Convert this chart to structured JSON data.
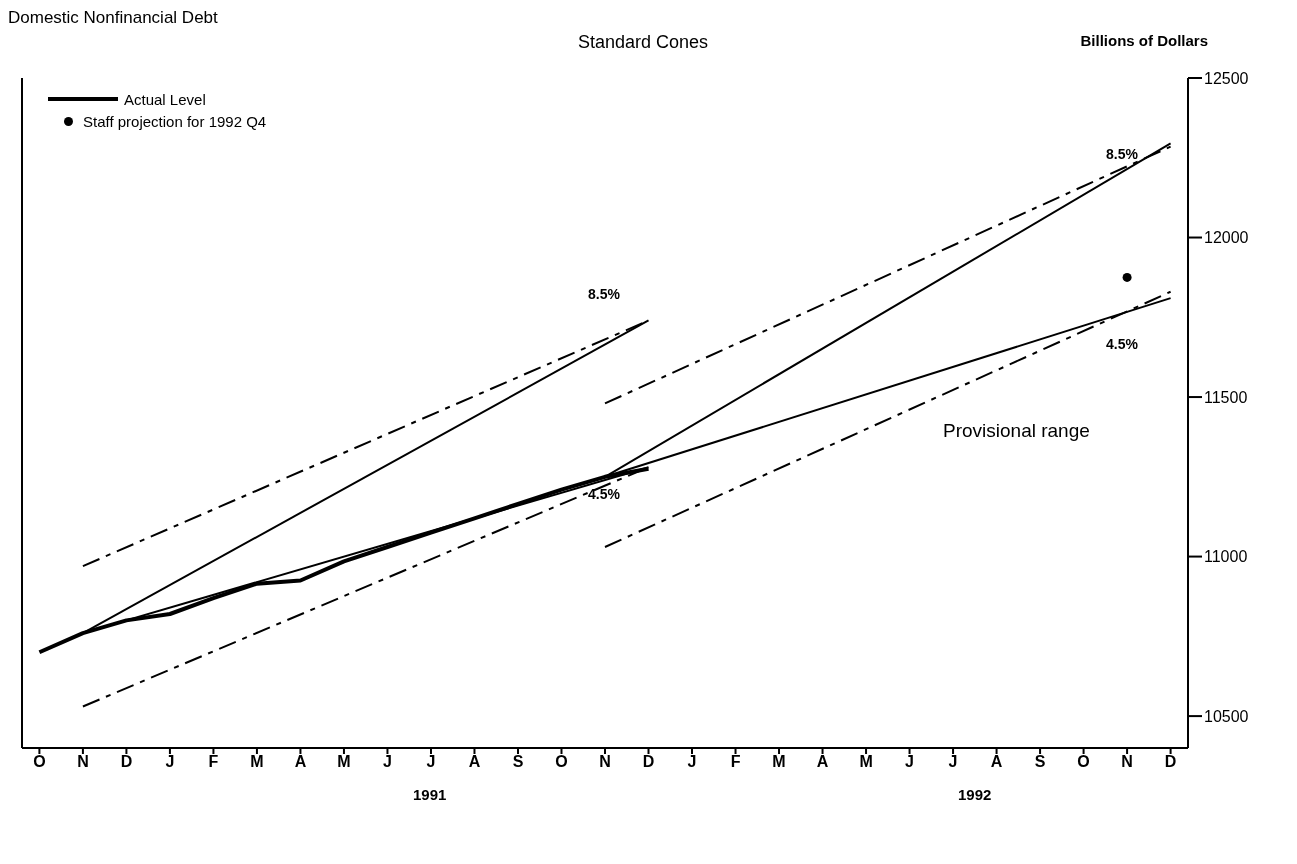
{
  "chart_data": {
    "type": "line",
    "title": "Domestic Nonfinancial Debt",
    "subtitle": "Standard Cones",
    "ylabel": "Billions of Dollars",
    "categories": [
      "O",
      "N",
      "D",
      "J",
      "F",
      "M",
      "A",
      "M",
      "J",
      "J",
      "A",
      "S",
      "O",
      "N",
      "D",
      "J",
      "F",
      "M",
      "A",
      "M",
      "J",
      "J",
      "A",
      "S",
      "O",
      "N",
      "D"
    ],
    "series": [
      {
        "name": "Actual Level",
        "color": "#000000",
        "line_style": "solid",
        "values": [
          10700,
          10760,
          10800,
          10820,
          10870,
          10915,
          10925,
          10985,
          11030,
          11075,
          11120,
          11165,
          11210,
          11250,
          11275,
          null,
          null,
          null,
          null,
          null,
          null,
          null,
          null,
          null,
          null,
          null,
          null
        ]
      },
      {
        "color": "#000000",
        "line_style": "solid",
        "values": [
          null,
          10760,
          null,
          null,
          null,
          null,
          null,
          null,
          null,
          null,
          null,
          null,
          null,
          null,
          11740,
          null,
          null,
          null,
          null,
          null,
          null,
          null,
          null,
          null,
          null,
          null,
          null
        ]
      },
      {
        "color": "#000000",
        "line_style": "solid",
        "values": [
          null,
          10760,
          null,
          null,
          null,
          null,
          null,
          null,
          null,
          null,
          null,
          null,
          null,
          null,
          11280,
          null,
          null,
          null,
          null,
          null,
          null,
          null,
          null,
          null,
          null,
          null,
          null
        ]
      },
      {
        "color": "#000000",
        "line_style": "dashed",
        "values": [
          null,
          10970,
          null,
          null,
          null,
          null,
          null,
          null,
          null,
          null,
          null,
          null,
          null,
          null,
          11740,
          null,
          null,
          null,
          null,
          null,
          null,
          null,
          null,
          null,
          null,
          null,
          null
        ]
      },
      {
        "color": "#000000",
        "line_style": "dashed",
        "values": [
          null,
          10530,
          null,
          null,
          null,
          null,
          null,
          null,
          null,
          null,
          null,
          null,
          null,
          null,
          11280,
          null,
          null,
          null,
          null,
          null,
          null,
          null,
          null,
          null,
          null,
          null,
          null
        ]
      },
      {
        "color": "#000000",
        "line_style": "solid",
        "values": [
          null,
          null,
          null,
          null,
          null,
          null,
          null,
          null,
          null,
          null,
          null,
          null,
          null,
          11250,
          null,
          null,
          null,
          null,
          null,
          null,
          null,
          null,
          null,
          null,
          null,
          null,
          12295
        ]
      },
      {
        "color": "#000000",
        "line_style": "solid",
        "values": [
          null,
          null,
          null,
          null,
          null,
          null,
          null,
          null,
          null,
          null,
          null,
          null,
          null,
          11250,
          null,
          null,
          null,
          null,
          null,
          null,
          null,
          null,
          null,
          null,
          null,
          null,
          11810
        ]
      },
      {
        "color": "#000000",
        "line_style": "dashed",
        "values": [
          null,
          null,
          null,
          null,
          null,
          null,
          null,
          null,
          null,
          null,
          null,
          null,
          null,
          11480,
          null,
          null,
          null,
          null,
          null,
          null,
          null,
          null,
          null,
          null,
          null,
          null,
          12285
        ]
      },
      {
        "color": "#000000",
        "line_style": "dashed",
        "values": [
          null,
          null,
          null,
          null,
          null,
          null,
          null,
          null,
          null,
          null,
          null,
          null,
          null,
          11030,
          null,
          null,
          null,
          null,
          null,
          null,
          null,
          null,
          null,
          null,
          null,
          null,
          11830
        ]
      },
      {
        "name": "Staff projection for 1992 Q4",
        "type": "scatter",
        "marker": "circle",
        "color": "#000000",
        "values": [
          null,
          null,
          null,
          null,
          null,
          null,
          null,
          null,
          null,
          null,
          null,
          null,
          null,
          null,
          null,
          null,
          null,
          null,
          null,
          null,
          null,
          null,
          null,
          null,
          null,
          11875,
          null
        ]
      }
    ],
    "ylim": [
      10400,
      12500
    ],
    "yticks": [
      10500,
      11000,
      11500,
      12000,
      12500
    ],
    "legend": "top left",
    "annotations": [
      "8.5%",
      "4.5%",
      "8.5%",
      "4.5%",
      "Provisional range",
      "1991",
      "1992"
    ]
  }
}
